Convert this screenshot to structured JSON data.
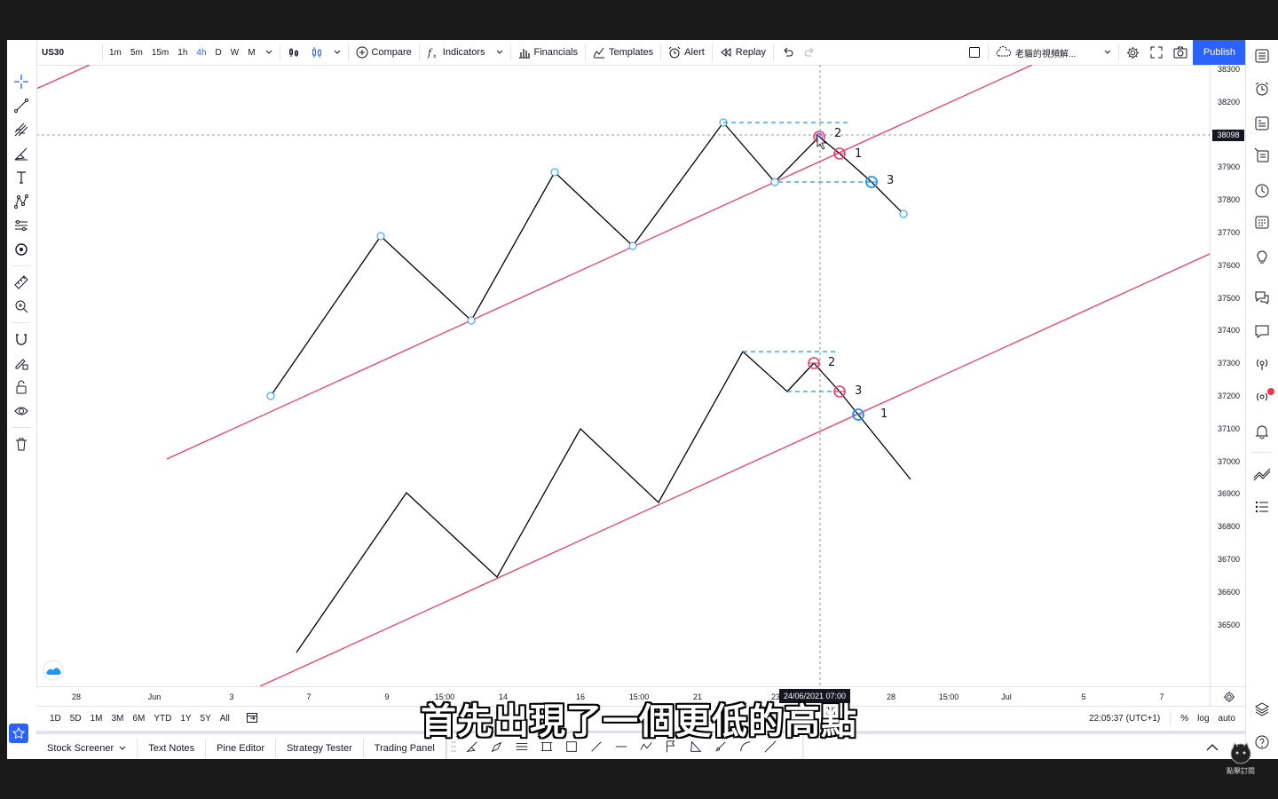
{
  "symbol": "US30",
  "intervals": [
    "1m",
    "5m",
    "15m",
    "1h",
    "4h",
    "D",
    "W",
    "M"
  ],
  "active_interval": "4h",
  "toolbar": {
    "compare_label": "Compare",
    "indicators_label": "Indicators",
    "financials_label": "Financials",
    "templates_label": "Templates",
    "alert_label": "Alert",
    "replay_label": "Replay",
    "layout_name": "老貓的視頻解...",
    "publish_label": "Publish"
  },
  "price_axis": {
    "ticks": [
      "38300",
      "38200",
      "38098",
      "38000",
      "37900",
      "37800",
      "37700",
      "37600",
      "37500",
      "37400",
      "37300",
      "37200",
      "37100",
      "37000",
      "36900",
      "36800",
      "36700",
      "36600",
      "36500"
    ],
    "cursor_price": "38098"
  },
  "time_axis": {
    "ticks": [
      "28",
      "Jun",
      "3",
      "7",
      "9",
      "15:00",
      "14",
      "16",
      "15:00",
      "21",
      "23",
      "28",
      "15:00",
      "Jul",
      "5",
      "7"
    ],
    "cursor_label": "24/06/2021  07:00"
  },
  "ranges": [
    "1D",
    "5D",
    "1M",
    "3M",
    "6M",
    "YTD",
    "1Y",
    "5Y",
    "All"
  ],
  "clock": "22:05:37 (UTC+1)",
  "scale_options": [
    "%",
    "log",
    "auto"
  ],
  "bottom_tabs": [
    "Stock Screener",
    "Text Notes",
    "Pine Editor",
    "Strategy Tester",
    "Trading Panel"
  ],
  "markers_top": [
    "2",
    "1",
    "3"
  ],
  "markers_bottom": [
    "2",
    "3",
    "1"
  ],
  "subtitle": "首先出現了一個更低的高點",
  "watermark": "點擊訂閱",
  "colors": {
    "accent": "#2962ff",
    "trendline": "#f23a6d",
    "zigzag": "#000000",
    "dash": "#2196f3",
    "marker_red": "#f23a6d",
    "marker_blue": "#2196f3"
  }
}
